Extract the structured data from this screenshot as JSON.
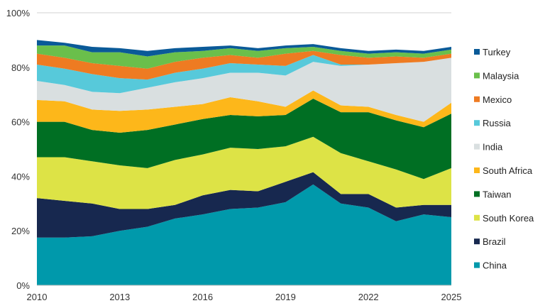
{
  "chart_data": {
    "type": "area",
    "stacked": true,
    "title": "",
    "xlabel": "",
    "ylabel": "",
    "x": [
      2010,
      2011,
      2012,
      2013,
      2014,
      2015,
      2016,
      2017,
      2018,
      2019,
      2020,
      2021,
      2022,
      2023,
      2024,
      2025
    ],
    "xticks": [
      "2010",
      "2013",
      "2016",
      "2019",
      "2022",
      "2025"
    ],
    "xlim": [
      2010,
      2025
    ],
    "ylim": [
      0,
      100
    ],
    "yticks": [
      "0%",
      "20%",
      "40%",
      "60%",
      "80%",
      "100%"
    ],
    "grid": false,
    "legend_position": "right",
    "series": [
      {
        "name": "China",
        "color": "#0099ab",
        "values": [
          17.5,
          17.5,
          18,
          20,
          21.5,
          24.5,
          26,
          28,
          28.5,
          30.5,
          37,
          30,
          28.5,
          23.5,
          26,
          25
        ]
      },
      {
        "name": "Brazil",
        "color": "#17284f",
        "values": [
          14.5,
          13.5,
          12,
          8,
          6.5,
          5,
          7,
          7,
          6,
          7.5,
          4.5,
          3.5,
          5,
          5,
          3.5,
          4.5
        ]
      },
      {
        "name": "South Korea",
        "color": "#dde346",
        "values": [
          15,
          16,
          15.5,
          16,
          15,
          16.5,
          15,
          15.5,
          15.5,
          13,
          13,
          15,
          12,
          14,
          9.5,
          13.5
        ]
      },
      {
        "name": "Taiwan",
        "color": "#006f23",
        "values": [
          13,
          13,
          11.5,
          12,
          14,
          13,
          13,
          12,
          12,
          11.5,
          14,
          15,
          18,
          18,
          19,
          20
        ]
      },
      {
        "name": "South Africa",
        "color": "#fdb71a",
        "values": [
          8,
          7.5,
          7.5,
          8,
          7.5,
          6.5,
          5.5,
          6.5,
          5.5,
          3,
          3,
          2.5,
          2,
          2,
          2,
          4
        ]
      },
      {
        "name": "India",
        "color": "#d9dfe0",
        "values": [
          7,
          6,
          6.5,
          6.5,
          8,
          9,
          9.5,
          9,
          10.5,
          11.5,
          10.5,
          14.5,
          15.5,
          19,
          22,
          16.5
        ]
      },
      {
        "name": "Russia",
        "color": "#57c9da",
        "values": [
          6,
          6,
          6.5,
          5.5,
          3,
          3.5,
          3.5,
          3.5,
          3,
          3.5,
          2.5,
          0.5,
          0,
          0,
          0,
          0
        ]
      },
      {
        "name": "Mexico",
        "color": "#ee7b22",
        "values": [
          4,
          4,
          4,
          4.5,
          4,
          4,
          4,
          3,
          2.5,
          4.5,
          1.5,
          3.5,
          2.5,
          2.5,
          1.5,
          1.5
        ]
      },
      {
        "name": "Malaysia",
        "color": "#6abf4b",
        "values": [
          3,
          4.5,
          4,
          5,
          4.5,
          3.5,
          2.5,
          2.5,
          2.5,
          2,
          1.5,
          1.5,
          1.5,
          1.5,
          1.5,
          1.5
        ]
      },
      {
        "name": "Turkey",
        "color": "#0a5a98",
        "values": [
          2,
          1,
          2,
          1.5,
          2,
          1.5,
          1.5,
          1,
          1,
          1,
          1,
          1,
          1,
          1,
          1,
          1
        ]
      }
    ]
  }
}
